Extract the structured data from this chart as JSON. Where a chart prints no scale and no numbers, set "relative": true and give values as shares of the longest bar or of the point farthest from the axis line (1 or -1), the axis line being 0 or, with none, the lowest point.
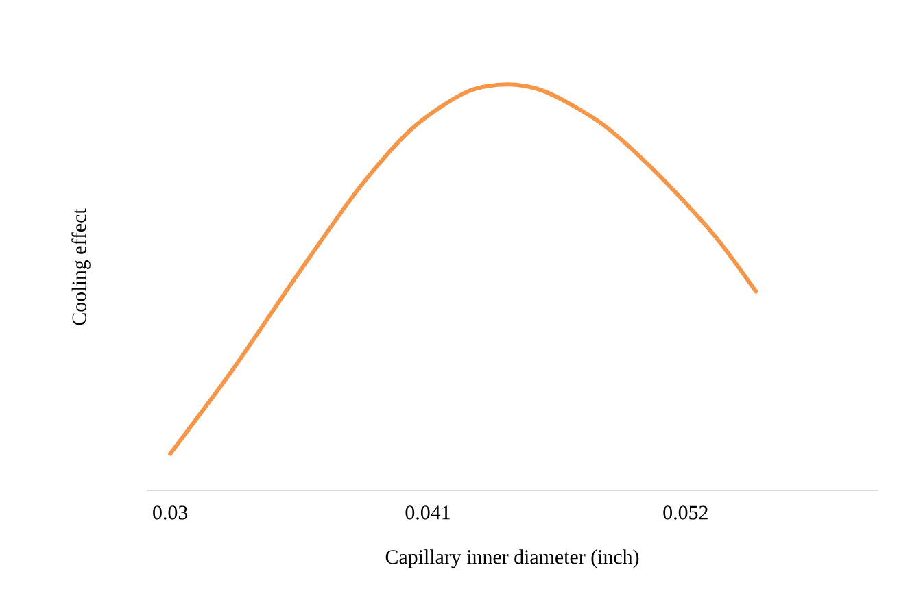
{
  "chart_data": {
    "type": "line",
    "relative": true,
    "xlabel": "Capillary inner diameter (inch)",
    "ylabel": "Cooling effect",
    "x": [
      0.03,
      0.0327,
      0.0353,
      0.038,
      0.0403,
      0.0426,
      0.0444,
      0.0461,
      0.0485,
      0.0508,
      0.0532,
      0.055
    ],
    "values": [
      0.09,
      0.3,
      0.52,
      0.74,
      0.89,
      0.98,
      1,
      0.98,
      0.9,
      0.78,
      0.63,
      0.49
    ],
    "color": "#f79646",
    "xlim": [
      0.029,
      0.0602
    ],
    "xticks": [
      0.03,
      0.041,
      0.052
    ]
  }
}
